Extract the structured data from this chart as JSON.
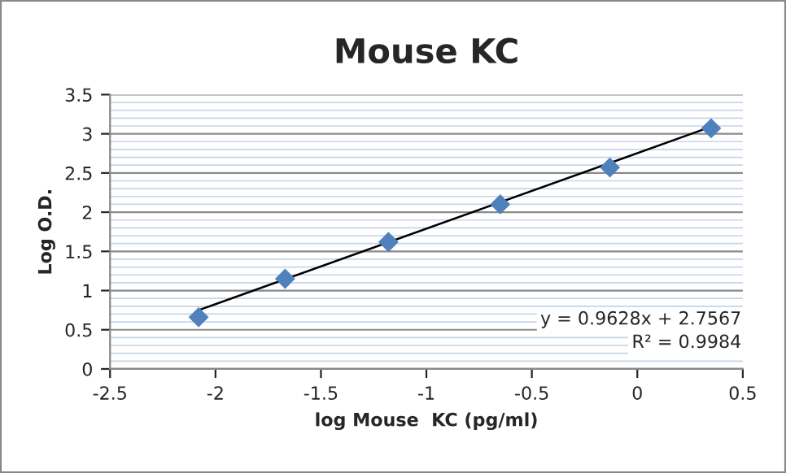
{
  "chart_data": {
    "type": "scatter",
    "title": "Mouse KC",
    "xlabel": "log Mouse  KC (pg/ml)",
    "ylabel": "Log O.D.",
    "series": [
      {
        "color": "#4f81bd",
        "marker": "diamond",
        "x": [
          -2.08,
          -1.67,
          -1.18,
          -0.65,
          -0.13,
          0.35
        ],
        "values": [
          0.66,
          1.15,
          1.62,
          2.1,
          2.57,
          3.07
        ]
      },
      {
        "type": "line",
        "color": "#000000",
        "marker": "none",
        "x": [
          -2.08,
          0.35
        ],
        "values": [
          0.75,
          3.09
        ]
      }
    ],
    "annotations": [
      "y = 0.9628x + 2.7567",
      "R² = 0.9984"
    ],
    "xlim": [
      -2.5,
      0.5
    ],
    "xticks": [
      -2.5,
      -2,
      -1.5,
      -1,
      -0.5,
      0,
      0.5
    ],
    "ylim": [
      0,
      3.5
    ],
    "yticks": [
      0,
      0.5,
      1,
      1.5,
      2,
      2.5,
      3,
      3.5
    ],
    "grid": "y",
    "legend": false
  }
}
